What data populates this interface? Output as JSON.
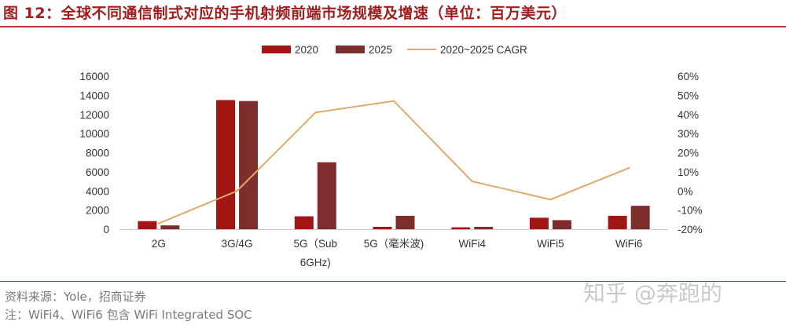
{
  "title": "图 12：全球不同通信制式对应的手机射频前端市场规模及增速（单位：百万美元）",
  "source": "资料来源：Yole，招商证券",
  "note": "注：WiFi4、WiFi6 包含 WiFi Integrated SOC",
  "watermark": "知乎 @奔跑的",
  "colors": {
    "s2020": "#a31515",
    "s2025": "#7e2d2d",
    "cagr": "#e0a968",
    "title": "#a01e1e"
  },
  "chart_data": {
    "type": "bar",
    "categories": [
      [
        "2G"
      ],
      [
        "3G/4G"
      ],
      [
        "5G（Sub",
        "6GHz)"
      ],
      [
        "5G（毫米波)"
      ],
      [
        "WiFi4"
      ],
      [
        "WiFi5"
      ],
      [
        "WiFi6"
      ]
    ],
    "series": [
      {
        "name": "2020",
        "type": "bar",
        "axis": "left",
        "values": [
          850,
          13500,
          1350,
          250,
          200,
          1200,
          1400
        ]
      },
      {
        "name": "2025",
        "type": "bar",
        "axis": "left",
        "values": [
          400,
          13400,
          7000,
          1400,
          250,
          950,
          2450
        ]
      },
      {
        "name": "2020~2025 CAGR",
        "type": "line",
        "axis": "right",
        "values": [
          -0.17,
          0.0,
          0.41,
          0.47,
          0.05,
          -0.045,
          0.12
        ]
      }
    ],
    "yticks_left": [
      "16000",
      "14000",
      "12000",
      "10000",
      "8000",
      "6000",
      "4000",
      "2000",
      "0"
    ],
    "yticks_right": [
      "60%",
      "50%",
      "40%",
      "30%",
      "20%",
      "10%",
      "0%",
      "-10%",
      "-20%"
    ],
    "ylim_left": [
      0,
      16000
    ],
    "ylim_right": [
      -0.2,
      0.6
    ],
    "legend_position": "top",
    "grid": false
  }
}
